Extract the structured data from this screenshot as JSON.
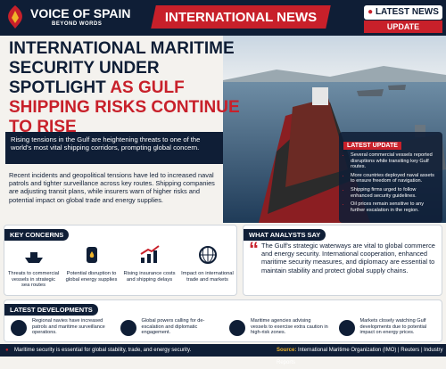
{
  "header": {
    "brand": "VOICE OF SPAIN",
    "tagline": "BEYOND WORDS",
    "banner": "INTERNATIONAL NEWS",
    "badge": "LATEST NEWS",
    "badge_sub": "UPDATE"
  },
  "headline": {
    "line1": "INTERNATIONAL MARITIME SECURITY UNDER SPOTLIGHT",
    "line2": "AS GULF SHIPPING RISKS CONTINUE TO RISE"
  },
  "lead": "Rising tensions in the Gulf are heightening threats to one of the world's most vital shipping corridors, prompting global concern.",
  "body": "Recent incidents and geopolitical tensions have led to increased naval patrols and tighter surveillance across key routes. Shipping companies are adjusting transit plans, while insurers warn of higher risks and potential impact on global trade and energy supplies.",
  "latest_update": {
    "title": "LATEST UPDATE",
    "items": [
      "Several commercial vessels reported disruptions while transiting key Gulf routes.",
      "More countries deployed naval assets to ensure freedom of navigation.",
      "Shipping firms urged to follow enhanced security guidelines.",
      "Oil prices remain sensitive to any further escalation in the region."
    ]
  },
  "key_concerns": {
    "title": "KEY CONCERNS",
    "items": [
      "Threats to commercial vessels in strategic sea routes",
      "Potential disruption to global energy supplies",
      "Rising insurance costs and shipping delays",
      "Impact on international trade and markets"
    ]
  },
  "analysts": {
    "title": "WHAT ANALYSTS SAY",
    "quote": "The Gulf's strategic waterways are vital to global commerce and energy security. International cooperation, enhanced maritime security measures, and diplomacy are essential to maintain stability and protect global supply chains."
  },
  "developments": {
    "title": "LATEST DEVELOPMENTS",
    "items": [
      "Regional navies have increased patrols and maritime surveillance operations.",
      "Global powers calling for de-escalation and diplomatic engagement.",
      "Maritime agencies advising vessels to exercise extra caution in high-risk zones.",
      "Markets closely watching Gulf developments due to potential impact on energy prices."
    ]
  },
  "footer": {
    "note": "Maritime security is essential for global stability, trade, and energy security.",
    "source_label": "Source:",
    "source": "International Maritime Organization (IMO) | Reuters | Industry Reports"
  }
}
